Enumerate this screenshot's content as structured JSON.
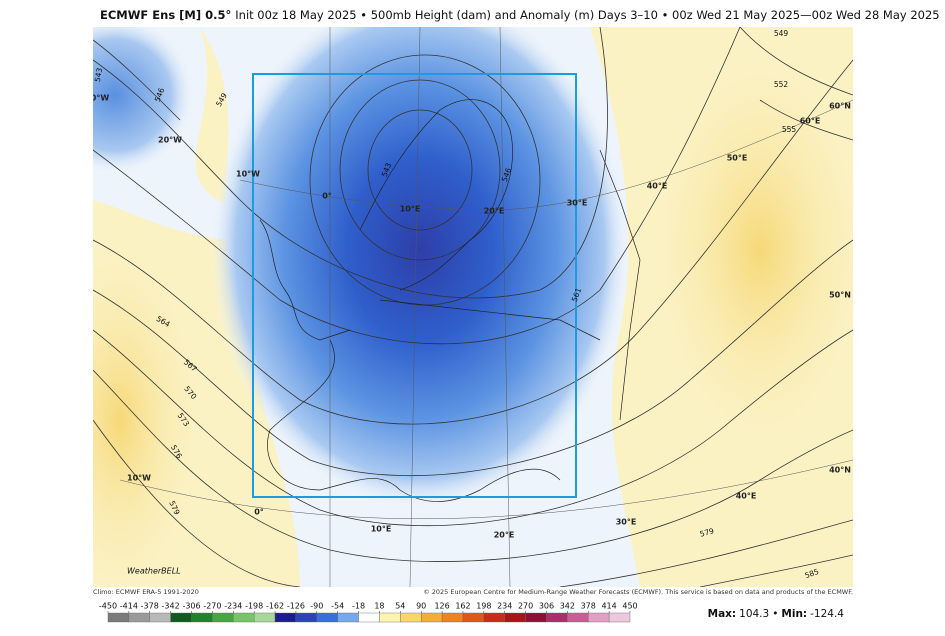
{
  "header": {
    "title": "ECMWF Ens [M] 0.5°",
    "subtitle": "Init 00z 18 May 2025 • 500mb Height (dam) and Anomaly (m)  Days 3–10 • 00z Wed 21 May 2025—00z Wed 28 May 2025"
  },
  "map": {
    "contour_labels": [
      543,
      546,
      549,
      543,
      546,
      561,
      564,
      567,
      570,
      573,
      576,
      579,
      549,
      552,
      555,
      579,
      585
    ],
    "graticule_labels": [
      "0°W",
      "20°W",
      "10°W",
      "0°",
      "10°E",
      "20°E",
      "30°E",
      "40°E",
      "50°E",
      "60°E",
      "60°N",
      "50°N",
      "40°N",
      "10°W",
      "0°",
      "10°E",
      "20°E",
      "30°E",
      "40°E"
    ],
    "watermark": "WeatherBELL"
  },
  "footer": {
    "climo": "Climo: ECMWF ERA-5 1991-2020",
    "copyright": "© 2025 European Centre for Medium-Range Weather Forecasts (ECMWF). This service is based on data and products of the ECMWF."
  },
  "colorbar": {
    "ticks": [
      -450,
      -414,
      -378,
      -342,
      -306,
      -270,
      -234,
      -198,
      -162,
      -126,
      -90,
      -54,
      -18,
      18,
      54,
      90,
      126,
      162,
      198,
      234,
      270,
      306,
      342,
      378,
      414,
      450
    ],
    "colors": [
      "#7a7a7a",
      "#9a9a9a",
      "#b8b8b8",
      "#0f5a1e",
      "#23802e",
      "#47a544",
      "#78c46a",
      "#a6d89a",
      "#1c1c8c",
      "#2a44b6",
      "#3b6fd8",
      "#78a8ec",
      "#ffffff",
      "#fff3b0",
      "#f9d66a",
      "#f2ad3c",
      "#ec8424",
      "#e2551c",
      "#cc2a1a",
      "#a8141a",
      "#8a1036",
      "#a8306a",
      "#c85e96",
      "#e0a0c4",
      "#ecc8dc"
    ]
  },
  "stats": {
    "max_label": "Max:",
    "max": "104.3",
    "separator": "•",
    "min_label": "Min:",
    "min": "-124.4"
  }
}
